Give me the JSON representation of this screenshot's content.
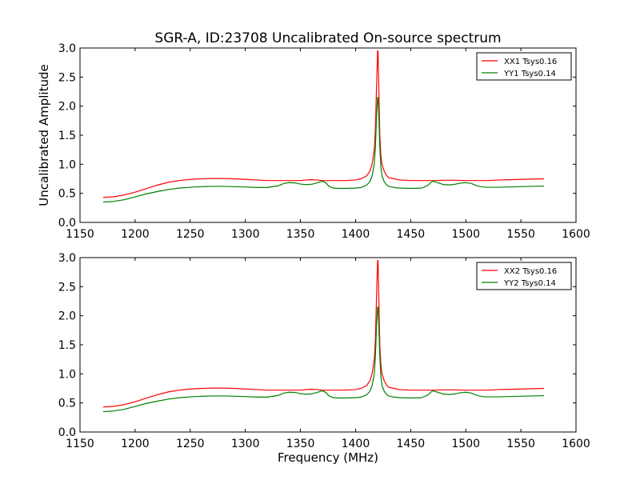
{
  "figure_title": "SGR-A, ID:23708 Uncalibrated On-source spectrum",
  "chart_data": [
    {
      "type": "line",
      "title": "SGR-A, ID:23708 Uncalibrated On-source spectrum",
      "xlabel": "",
      "ylabel": "Uncalibrated Amplitude",
      "xlim": [
        1150,
        1600
      ],
      "ylim": [
        0.0,
        3.0
      ],
      "xticks": [
        "1150",
        "1200",
        "1250",
        "1300",
        "1350",
        "1400",
        "1450",
        "1500",
        "1550",
        "1600"
      ],
      "yticks": [
        "0.0",
        "0.5",
        "1.0",
        "1.5",
        "2.0",
        "2.5",
        "3.0"
      ],
      "legend_position": "top-right",
      "grid": false,
      "series": [
        {
          "name": "XX1 Tsys0.16",
          "color": "#ff0000",
          "x": [
            1171,
            1180,
            1190,
            1200,
            1210,
            1220,
            1230,
            1240,
            1250,
            1260,
            1270,
            1280,
            1290,
            1300,
            1310,
            1320,
            1330,
            1340,
            1350,
            1355,
            1360,
            1365,
            1370,
            1375,
            1380,
            1390,
            1400,
            1405,
            1410,
            1413,
            1415,
            1417,
            1418,
            1419,
            1420,
            1420.4,
            1421,
            1422,
            1423,
            1424,
            1426,
            1428,
            1430,
            1435,
            1440,
            1450,
            1460,
            1470,
            1480,
            1490,
            1500,
            1510,
            1520,
            1530,
            1540,
            1550,
            1560,
            1571
          ],
          "y": [
            0.43,
            0.44,
            0.47,
            0.52,
            0.58,
            0.64,
            0.69,
            0.72,
            0.74,
            0.75,
            0.755,
            0.755,
            0.75,
            0.74,
            0.73,
            0.72,
            0.72,
            0.72,
            0.72,
            0.73,
            0.735,
            0.73,
            0.72,
            0.72,
            0.72,
            0.72,
            0.73,
            0.75,
            0.8,
            0.88,
            1.0,
            1.25,
            1.6,
            2.3,
            2.95,
            2.95,
            2.4,
            1.5,
            1.15,
            1.0,
            0.88,
            0.81,
            0.77,
            0.75,
            0.73,
            0.72,
            0.72,
            0.72,
            0.725,
            0.725,
            0.72,
            0.72,
            0.72,
            0.73,
            0.735,
            0.74,
            0.745,
            0.75
          ]
        },
        {
          "name": "YY1 Tsys0.14",
          "color": "#008000",
          "x": [
            1171,
            1180,
            1190,
            1200,
            1210,
            1220,
            1230,
            1240,
            1250,
            1260,
            1270,
            1280,
            1290,
            1300,
            1310,
            1320,
            1330,
            1335,
            1340,
            1345,
            1350,
            1355,
            1360,
            1365,
            1370,
            1373,
            1376,
            1380,
            1385,
            1390,
            1400,
            1405,
            1410,
            1413,
            1415,
            1417,
            1418,
            1419,
            1420,
            1420.4,
            1421,
            1422,
            1423,
            1424,
            1426,
            1428,
            1430,
            1435,
            1440,
            1450,
            1460,
            1465,
            1470,
            1475,
            1480,
            1485,
            1490,
            1495,
            1500,
            1505,
            1510,
            1515,
            1520,
            1530,
            1540,
            1550,
            1560,
            1571
          ],
          "y": [
            0.35,
            0.36,
            0.39,
            0.44,
            0.49,
            0.53,
            0.565,
            0.59,
            0.605,
            0.615,
            0.62,
            0.62,
            0.615,
            0.61,
            0.6,
            0.6,
            0.63,
            0.67,
            0.685,
            0.68,
            0.66,
            0.65,
            0.655,
            0.68,
            0.71,
            0.68,
            0.62,
            0.59,
            0.585,
            0.585,
            0.59,
            0.6,
            0.64,
            0.7,
            0.8,
            1.0,
            1.3,
            1.8,
            2.15,
            2.15,
            1.9,
            1.3,
            0.95,
            0.8,
            0.7,
            0.65,
            0.62,
            0.6,
            0.59,
            0.585,
            0.59,
            0.63,
            0.71,
            0.68,
            0.65,
            0.645,
            0.655,
            0.675,
            0.685,
            0.67,
            0.63,
            0.61,
            0.605,
            0.605,
            0.61,
            0.615,
            0.62,
            0.625
          ]
        }
      ]
    },
    {
      "type": "line",
      "title": "",
      "xlabel": "Frequency (MHz)",
      "ylabel": "",
      "xlim": [
        1150,
        1600
      ],
      "ylim": [
        0.0,
        3.0
      ],
      "xticks": [
        "1150",
        "1200",
        "1250",
        "1300",
        "1350",
        "1400",
        "1450",
        "1500",
        "1550",
        "1600"
      ],
      "yticks": [
        "0.0",
        "0.5",
        "1.0",
        "1.5",
        "2.0",
        "2.5",
        "3.0"
      ],
      "legend_position": "top-right",
      "grid": false,
      "series": [
        {
          "name": "XX2 Tsys0.16",
          "color": "#ff0000",
          "x": [
            1171,
            1180,
            1190,
            1200,
            1210,
            1220,
            1230,
            1240,
            1250,
            1260,
            1270,
            1280,
            1290,
            1300,
            1310,
            1320,
            1330,
            1340,
            1350,
            1355,
            1360,
            1365,
            1370,
            1375,
            1380,
            1390,
            1400,
            1405,
            1410,
            1413,
            1415,
            1417,
            1418,
            1419,
            1420,
            1420.4,
            1421,
            1422,
            1423,
            1424,
            1426,
            1428,
            1430,
            1435,
            1440,
            1450,
            1460,
            1470,
            1480,
            1490,
            1500,
            1510,
            1520,
            1530,
            1540,
            1550,
            1560,
            1571
          ],
          "y": [
            0.43,
            0.44,
            0.47,
            0.52,
            0.58,
            0.64,
            0.69,
            0.72,
            0.74,
            0.75,
            0.755,
            0.755,
            0.75,
            0.74,
            0.73,
            0.72,
            0.72,
            0.72,
            0.72,
            0.73,
            0.735,
            0.73,
            0.72,
            0.72,
            0.72,
            0.72,
            0.73,
            0.75,
            0.8,
            0.88,
            1.0,
            1.25,
            1.6,
            2.3,
            2.95,
            2.95,
            2.4,
            1.5,
            1.15,
            1.0,
            0.88,
            0.81,
            0.77,
            0.75,
            0.73,
            0.72,
            0.72,
            0.72,
            0.725,
            0.725,
            0.72,
            0.72,
            0.72,
            0.73,
            0.735,
            0.74,
            0.745,
            0.75
          ]
        },
        {
          "name": "YY2 Tsys0.14",
          "color": "#008000",
          "x": [
            1171,
            1180,
            1190,
            1200,
            1210,
            1220,
            1230,
            1240,
            1250,
            1260,
            1270,
            1280,
            1290,
            1300,
            1310,
            1320,
            1330,
            1335,
            1340,
            1345,
            1350,
            1355,
            1360,
            1365,
            1370,
            1373,
            1376,
            1380,
            1385,
            1390,
            1400,
            1405,
            1410,
            1413,
            1415,
            1417,
            1418,
            1419,
            1420,
            1420.4,
            1421,
            1422,
            1423,
            1424,
            1426,
            1428,
            1430,
            1435,
            1440,
            1450,
            1460,
            1465,
            1470,
            1475,
            1480,
            1485,
            1490,
            1495,
            1500,
            1505,
            1510,
            1515,
            1520,
            1530,
            1540,
            1550,
            1560,
            1571
          ],
          "y": [
            0.35,
            0.36,
            0.39,
            0.44,
            0.49,
            0.53,
            0.565,
            0.59,
            0.605,
            0.615,
            0.62,
            0.62,
            0.615,
            0.61,
            0.6,
            0.6,
            0.63,
            0.67,
            0.685,
            0.68,
            0.66,
            0.65,
            0.655,
            0.68,
            0.71,
            0.68,
            0.62,
            0.59,
            0.585,
            0.585,
            0.59,
            0.6,
            0.64,
            0.7,
            0.8,
            1.0,
            1.3,
            1.8,
            2.15,
            2.15,
            1.9,
            1.3,
            0.95,
            0.8,
            0.7,
            0.65,
            0.62,
            0.6,
            0.59,
            0.585,
            0.59,
            0.63,
            0.71,
            0.68,
            0.65,
            0.645,
            0.655,
            0.675,
            0.685,
            0.67,
            0.63,
            0.61,
            0.605,
            0.605,
            0.61,
            0.615,
            0.62,
            0.625
          ]
        }
      ]
    }
  ]
}
